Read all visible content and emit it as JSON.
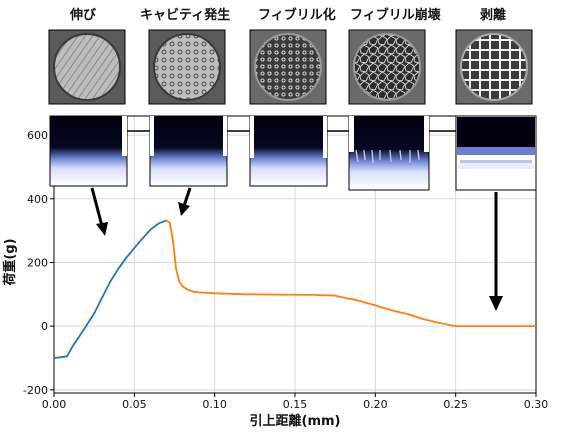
{
  "stage_labels": [
    "伸び",
    "キャビティ発生",
    "フィブリル化",
    "フィブリル崩壊",
    "剥離"
  ],
  "chart_data": {
    "type": "line",
    "title": "",
    "xlabel": "引上距離(mm)",
    "ylabel": "荷重(g)",
    "xlim": [
      0.0,
      0.3
    ],
    "ylim": [
      -210,
      660
    ],
    "xticks": [
      "0.00",
      "0.05",
      "0.10",
      "0.15",
      "0.20",
      "0.25",
      "0.30"
    ],
    "yticks": [
      "-200",
      "0",
      "200",
      "400",
      "600"
    ],
    "grid": true,
    "legend": "none",
    "series": [
      {
        "color": "#1f77b4",
        "x": [
          0.0,
          0.004,
          0.008,
          0.012,
          0.016,
          0.02,
          0.025,
          0.03,
          0.035,
          0.04,
          0.045,
          0.05,
          0.055,
          0.06,
          0.065,
          0.07
        ],
        "y": [
          -100,
          -98,
          -95,
          -60,
          -30,
          0,
          40,
          90,
          140,
          180,
          215,
          245,
          275,
          303,
          322,
          332
        ]
      },
      {
        "color": "#ff7f0e",
        "x": [
          0.07,
          0.072,
          0.074,
          0.076,
          0.078,
          0.08,
          0.083,
          0.087,
          0.09,
          0.1,
          0.12,
          0.14,
          0.16,
          0.175,
          0.18,
          0.19,
          0.2,
          0.21,
          0.22,
          0.23,
          0.24,
          0.25,
          0.26,
          0.28,
          0.3
        ],
        "y": [
          332,
          325,
          270,
          180,
          140,
          125,
          115,
          108,
          106,
          103,
          100,
          99,
          98,
          96,
          90,
          80,
          65,
          50,
          38,
          22,
          10,
          0,
          0,
          0,
          0
        ]
      }
    ]
  },
  "icons": {
    "top_row": [
      "stretch-top-view-photo",
      "cavitation-top-view-photo",
      "fibrillation-top-view-photo",
      "fibril-collapse-top-view-photo",
      "peel-top-view-photo"
    ],
    "side_row": [
      "stretch-side-view-photo",
      "cavitation-side-view-photo",
      "fibrillation-side-view-photo",
      "fibril-collapse-side-view-photo",
      "peel-side-view-photo"
    ]
  },
  "colors": {
    "blue_series": "#1f77b4",
    "orange_series": "#ff7f0e",
    "grid": "#d8d8d8"
  }
}
